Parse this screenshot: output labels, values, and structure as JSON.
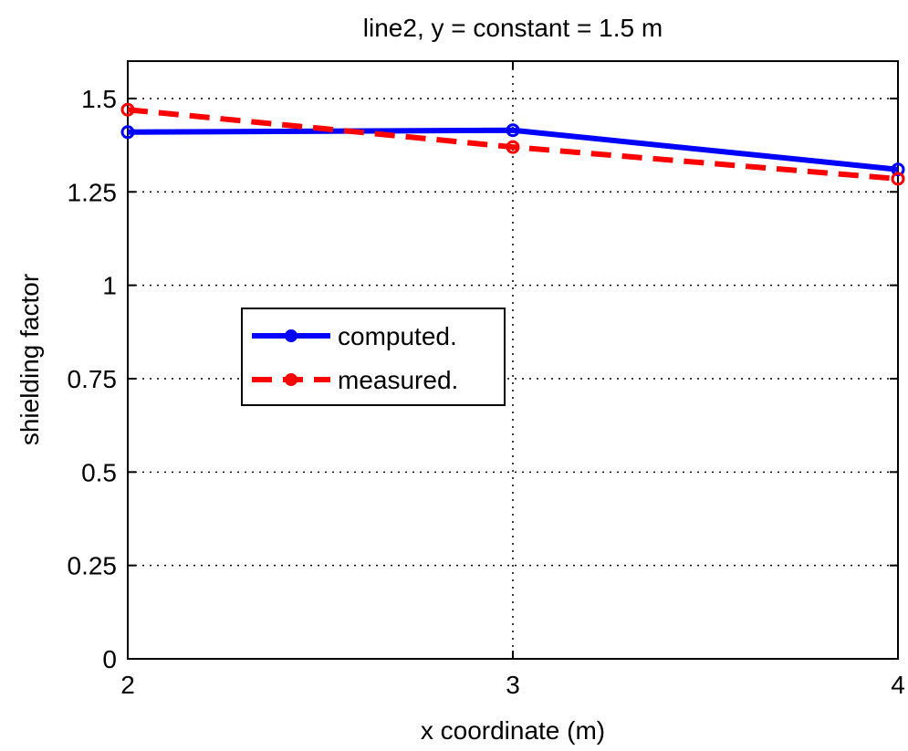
{
  "chart_data": {
    "type": "line",
    "title": "line2, y = constant = 1.5 m",
    "xlabel": "x coordinate (m)",
    "ylabel": "shielding factor",
    "xlim": [
      2,
      4
    ],
    "ylim": [
      0,
      1.6
    ],
    "xticks": [
      2,
      3,
      4
    ],
    "xtick_labels": [
      "2",
      "3",
      "4"
    ],
    "yticks": [
      0,
      0.25,
      0.5,
      0.75,
      1,
      1.25,
      1.5
    ],
    "ytick_labels": [
      "0",
      "0.25",
      "0.5",
      "0.75",
      "1",
      "1.25",
      "1.5"
    ],
    "grid": true,
    "legend_position": "center-left",
    "x": [
      2,
      3,
      4
    ],
    "series": [
      {
        "name": "computed.",
        "values": [
          1.41,
          1.415,
          1.31
        ],
        "color": "#0000ff",
        "dash": "solid"
      },
      {
        "name": "measured.",
        "values": [
          1.47,
          1.37,
          1.285
        ],
        "color": "#ff0000",
        "dash": "dashed"
      }
    ]
  }
}
